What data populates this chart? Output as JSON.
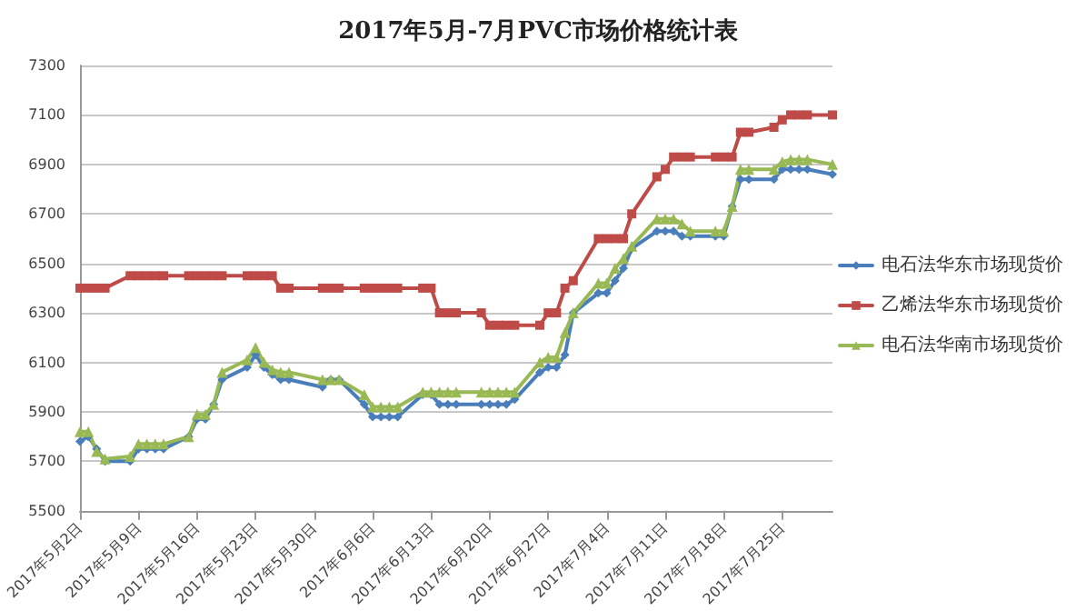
{
  "chart_data": {
    "type": "line",
    "title": "2017年5月-7月PVC市场价格统计表",
    "xlim": [
      "2017-05-02",
      "2017-07-31"
    ],
    "xticks": [
      {
        "value": "2017-05-02",
        "label": "2017年5月2日"
      },
      {
        "value": "2017-05-09",
        "label": "2017年5月9日"
      },
      {
        "value": "2017-05-16",
        "label": "2017年5月16日"
      },
      {
        "value": "2017-05-23",
        "label": "2017年5月23日"
      },
      {
        "value": "2017-05-30",
        "label": "2017年5月30日"
      },
      {
        "value": "2017-06-06",
        "label": "2017年6月6日"
      },
      {
        "value": "2017-06-13",
        "label": "2017年6月13日"
      },
      {
        "value": "2017-06-20",
        "label": "2017年6月20日"
      },
      {
        "value": "2017-06-27",
        "label": "2017年6月27日"
      },
      {
        "value": "2017-07-04",
        "label": "2017年7月4日"
      },
      {
        "value": "2017-07-11",
        "label": "2017年7月11日"
      },
      {
        "value": "2017-07-18",
        "label": "2017年7月18日"
      },
      {
        "value": "2017-07-25",
        "label": "2017年7月25日"
      }
    ],
    "ylim": [
      5500,
      7300
    ],
    "yticks": [
      5500,
      5700,
      5900,
      6100,
      6300,
      6500,
      6700,
      6900,
      7100,
      7300
    ],
    "grid": "y",
    "legend": "right",
    "line_style": "solid",
    "series": [
      {
        "name": "电石法华东市场现货价",
        "color": "#4a7ebb",
        "marker": "diamond",
        "x": [
          "2017-05-02",
          "2017-05-03",
          "2017-05-04",
          "2017-05-05",
          "2017-05-08",
          "2017-05-09",
          "2017-05-10",
          "2017-05-11",
          "2017-05-12",
          "2017-05-15",
          "2017-05-16",
          "2017-05-17",
          "2017-05-18",
          "2017-05-19",
          "2017-05-22",
          "2017-05-23",
          "2017-05-24",
          "2017-05-25",
          "2017-05-26",
          "2017-05-27",
          "2017-05-31",
          "2017-06-01",
          "2017-06-02",
          "2017-06-05",
          "2017-06-06",
          "2017-06-07",
          "2017-06-08",
          "2017-06-09",
          "2017-06-12",
          "2017-06-13",
          "2017-06-14",
          "2017-06-15",
          "2017-06-16",
          "2017-06-19",
          "2017-06-20",
          "2017-06-21",
          "2017-06-22",
          "2017-06-23",
          "2017-06-26",
          "2017-06-27",
          "2017-06-28",
          "2017-06-29",
          "2017-06-30",
          "2017-07-03",
          "2017-07-04",
          "2017-07-05",
          "2017-07-06",
          "2017-07-07",
          "2017-07-10",
          "2017-07-11",
          "2017-07-12",
          "2017-07-13",
          "2017-07-14",
          "2017-07-17",
          "2017-07-18",
          "2017-07-19",
          "2017-07-20",
          "2017-07-21",
          "2017-07-24",
          "2017-07-25",
          "2017-07-26",
          "2017-07-27",
          "2017-07-28",
          "2017-07-31"
        ],
        "values": [
          5780,
          5800,
          5750,
          5700,
          5700,
          5750,
          5750,
          5750,
          5750,
          5800,
          5870,
          5870,
          5930,
          6030,
          6080,
          6130,
          6080,
          6050,
          6030,
          6030,
          6000,
          6030,
          6030,
          5930,
          5880,
          5880,
          5880,
          5880,
          5970,
          5970,
          5930,
          5930,
          5930,
          5930,
          5930,
          5930,
          5930,
          5950,
          6060,
          6080,
          6080,
          6130,
          6300,
          6380,
          6380,
          6430,
          6480,
          6560,
          6630,
          6630,
          6630,
          6610,
          6610,
          6610,
          6610,
          6730,
          6840,
          6840,
          6840,
          6880,
          6880,
          6880,
          6880,
          6860
        ]
      },
      {
        "name": "乙烯法华东市场现货价",
        "color": "#be4b48",
        "marker": "square",
        "x": [
          "2017-05-02",
          "2017-05-03",
          "2017-05-04",
          "2017-05-05",
          "2017-05-08",
          "2017-05-09",
          "2017-05-10",
          "2017-05-11",
          "2017-05-12",
          "2017-05-15",
          "2017-05-16",
          "2017-05-17",
          "2017-05-18",
          "2017-05-19",
          "2017-05-22",
          "2017-05-23",
          "2017-05-24",
          "2017-05-25",
          "2017-05-26",
          "2017-05-27",
          "2017-05-31",
          "2017-06-01",
          "2017-06-02",
          "2017-06-05",
          "2017-06-06",
          "2017-06-07",
          "2017-06-08",
          "2017-06-09",
          "2017-06-12",
          "2017-06-13",
          "2017-06-14",
          "2017-06-15",
          "2017-06-16",
          "2017-06-19",
          "2017-06-20",
          "2017-06-21",
          "2017-06-22",
          "2017-06-23",
          "2017-06-26",
          "2017-06-27",
          "2017-06-28",
          "2017-06-29",
          "2017-06-30",
          "2017-07-03",
          "2017-07-04",
          "2017-07-05",
          "2017-07-06",
          "2017-07-07",
          "2017-07-10",
          "2017-07-11",
          "2017-07-12",
          "2017-07-13",
          "2017-07-14",
          "2017-07-17",
          "2017-07-18",
          "2017-07-19",
          "2017-07-20",
          "2017-07-21",
          "2017-07-24",
          "2017-07-25",
          "2017-07-26",
          "2017-07-27",
          "2017-07-28",
          "2017-07-31"
        ],
        "values": [
          6400,
          6400,
          6400,
          6400,
          6450,
          6450,
          6450,
          6450,
          6450,
          6450,
          6450,
          6450,
          6450,
          6450,
          6450,
          6450,
          6450,
          6450,
          6400,
          6400,
          6400,
          6400,
          6400,
          6400,
          6400,
          6400,
          6400,
          6400,
          6400,
          6400,
          6300,
          6300,
          6300,
          6300,
          6250,
          6250,
          6250,
          6250,
          6250,
          6300,
          6300,
          6400,
          6430,
          6600,
          6600,
          6600,
          6600,
          6700,
          6850,
          6880,
          6930,
          6930,
          6930,
          6930,
          6930,
          6930,
          7030,
          7030,
          7050,
          7080,
          7100,
          7100,
          7100,
          7100
        ]
      },
      {
        "name": "电石法华南市场现货价",
        "color": "#98b954",
        "marker": "triangle",
        "x": [
          "2017-05-02",
          "2017-05-03",
          "2017-05-04",
          "2017-05-05",
          "2017-05-08",
          "2017-05-09",
          "2017-05-10",
          "2017-05-11",
          "2017-05-12",
          "2017-05-15",
          "2017-05-16",
          "2017-05-17",
          "2017-05-18",
          "2017-05-19",
          "2017-05-22",
          "2017-05-23",
          "2017-05-24",
          "2017-05-25",
          "2017-05-26",
          "2017-05-27",
          "2017-05-31",
          "2017-06-01",
          "2017-06-02",
          "2017-06-05",
          "2017-06-06",
          "2017-06-07",
          "2017-06-08",
          "2017-06-09",
          "2017-06-12",
          "2017-06-13",
          "2017-06-14",
          "2017-06-15",
          "2017-06-16",
          "2017-06-19",
          "2017-06-20",
          "2017-06-21",
          "2017-06-22",
          "2017-06-23",
          "2017-06-26",
          "2017-06-27",
          "2017-06-28",
          "2017-06-29",
          "2017-06-30",
          "2017-07-03",
          "2017-07-04",
          "2017-07-05",
          "2017-07-06",
          "2017-07-07",
          "2017-07-10",
          "2017-07-11",
          "2017-07-12",
          "2017-07-13",
          "2017-07-14",
          "2017-07-17",
          "2017-07-18",
          "2017-07-19",
          "2017-07-20",
          "2017-07-21",
          "2017-07-24",
          "2017-07-25",
          "2017-07-26",
          "2017-07-27",
          "2017-07-28",
          "2017-07-31"
        ],
        "values": [
          5820,
          5820,
          5740,
          5710,
          5720,
          5770,
          5770,
          5770,
          5770,
          5800,
          5890,
          5890,
          5930,
          6060,
          6110,
          6160,
          6100,
          6070,
          6060,
          6060,
          6030,
          6030,
          6030,
          5970,
          5920,
          5920,
          5920,
          5920,
          5980,
          5980,
          5980,
          5980,
          5980,
          5980,
          5980,
          5980,
          5980,
          5980,
          6100,
          6120,
          6120,
          6220,
          6300,
          6420,
          6420,
          6480,
          6520,
          6570,
          6680,
          6680,
          6680,
          6660,
          6630,
          6630,
          6630,
          6730,
          6880,
          6880,
          6880,
          6910,
          6920,
          6920,
          6920,
          6900
        ]
      }
    ]
  }
}
